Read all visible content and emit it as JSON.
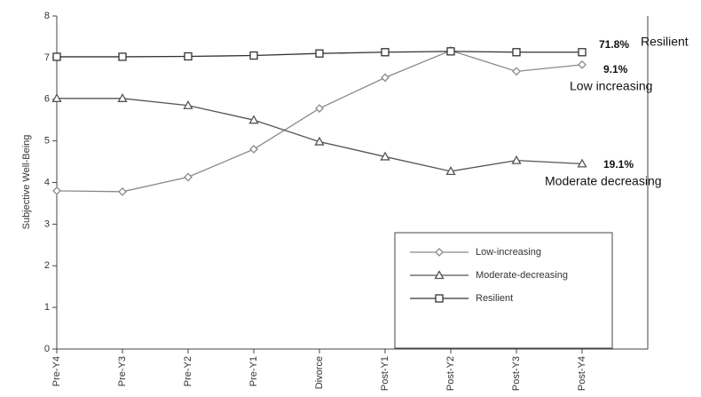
{
  "chart_data": {
    "type": "line",
    "ylabel": "Subjective Well-Being",
    "categories": [
      "Pre-Y4",
      "Pre-Y3",
      "Pre-Y2",
      "Pre-Y1",
      "Divorce",
      "Post-Y1",
      "Post-Y2",
      "Post-Y3",
      "Post-Y4"
    ],
    "series": [
      {
        "name": "Low-increasing",
        "color": "#8a8a8a",
        "marker": "diamond",
        "values": [
          3.8,
          3.78,
          4.13,
          4.8,
          5.78,
          6.52,
          7.17,
          6.67,
          6.83
        ]
      },
      {
        "name": "Moderate-decreasing",
        "color": "#555555",
        "marker": "triangle",
        "values": [
          6.02,
          6.02,
          5.85,
          5.5,
          4.98,
          4.62,
          4.27,
          4.53,
          4.45
        ]
      },
      {
        "name": "Resilient",
        "color": "#333333",
        "marker": "square",
        "values": [
          7.02,
          7.02,
          7.03,
          7.05,
          7.1,
          7.13,
          7.15,
          7.13,
          7.13
        ]
      }
    ],
    "ylim": [
      0,
      8
    ],
    "yticks": [
      0,
      1,
      2,
      3,
      4,
      5,
      6,
      7,
      8
    ],
    "annotations": [
      "71.8%",
      "Resilient",
      "9.1%",
      "Low increasing",
      "19.1%",
      "Moderate decreasing"
    ]
  }
}
